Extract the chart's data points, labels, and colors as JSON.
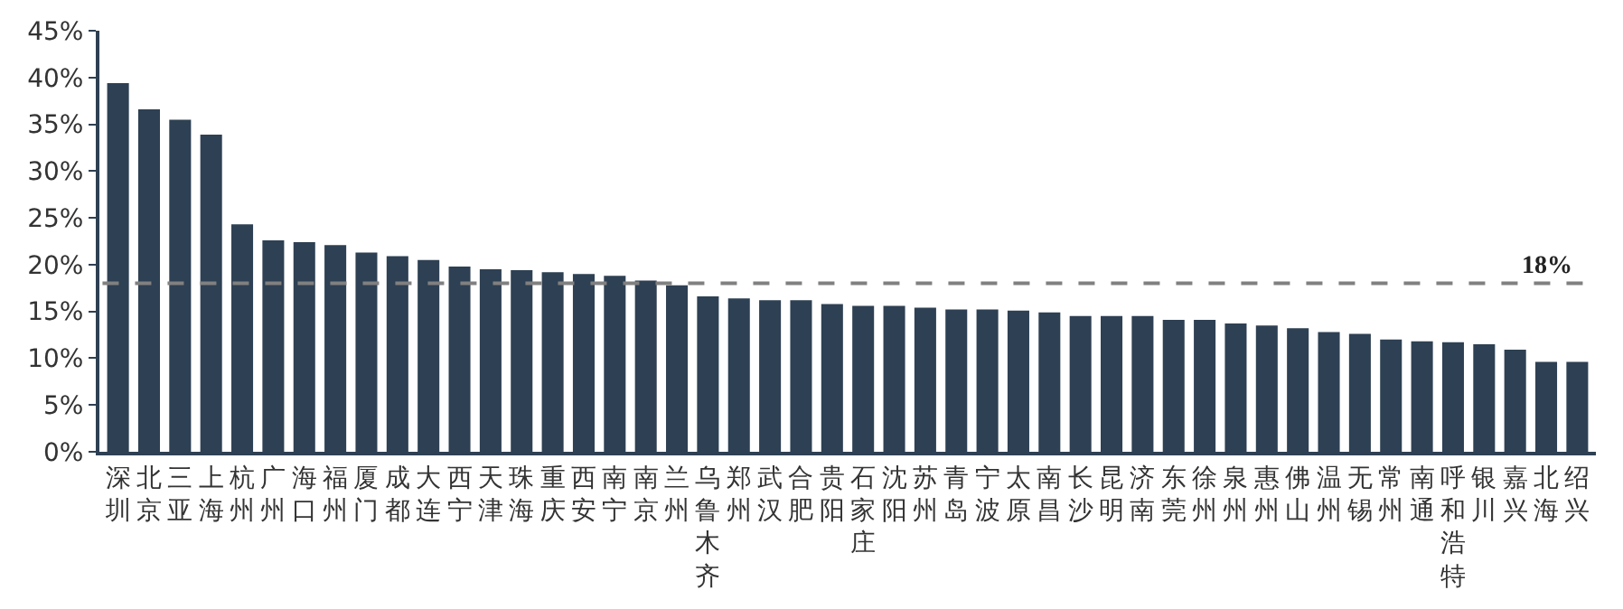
{
  "chart_data": {
    "type": "bar",
    "categories": [
      "深圳",
      "北京",
      "三亚",
      "上海",
      "杭州",
      "广州",
      "海口",
      "福州",
      "厦门",
      "成都",
      "大连",
      "西宁",
      "天津",
      "珠海",
      "重庆",
      "西安",
      "南宁",
      "南京",
      "兰州",
      "乌鲁木齐",
      "郑州",
      "武汉",
      "合肥",
      "贵阳",
      "石家庄",
      "沈阳",
      "苏州",
      "青岛",
      "宁波",
      "太原",
      "南昌",
      "长沙",
      "昆明",
      "济南",
      "东莞",
      "徐州",
      "泉州",
      "惠州",
      "佛山",
      "温州",
      "无锡",
      "常州",
      "南通",
      "呼和浩特",
      "银川",
      "嘉兴",
      "北海",
      "绍兴"
    ],
    "values": [
      39.4,
      36.6,
      35.5,
      33.9,
      24.3,
      22.6,
      22.4,
      22.1,
      21.3,
      20.9,
      20.5,
      19.8,
      19.5,
      19.4,
      19.2,
      19.0,
      18.8,
      18.3,
      17.8,
      16.6,
      16.4,
      16.2,
      16.2,
      15.8,
      15.6,
      15.6,
      15.4,
      15.2,
      15.2,
      15.1,
      14.9,
      14.5,
      14.5,
      14.5,
      14.1,
      14.1,
      13.7,
      13.5,
      13.2,
      12.8,
      12.6,
      12.0,
      11.8,
      11.7,
      11.5,
      10.9,
      9.6,
      9.6
    ],
    "color": "#2e4053",
    "ylim": [
      0,
      45
    ],
    "yticks": [
      {
        "value": 0,
        "label": "0%"
      },
      {
        "value": 5,
        "label": "5%"
      },
      {
        "value": 10,
        "label": "10%"
      },
      {
        "value": 15,
        "label": "15%"
      },
      {
        "value": 20,
        "label": "20%"
      },
      {
        "value": 25,
        "label": "25%"
      },
      {
        "value": 30,
        "label": "30%"
      },
      {
        "value": 35,
        "label": "35%"
      },
      {
        "value": 40,
        "label": "40%"
      },
      {
        "value": 45,
        "label": "45%"
      }
    ],
    "ref_lines": [
      {
        "axis": "y",
        "value": 18,
        "label": "18%",
        "color": "#808080",
        "line_style": "dashed"
      }
    ]
  }
}
